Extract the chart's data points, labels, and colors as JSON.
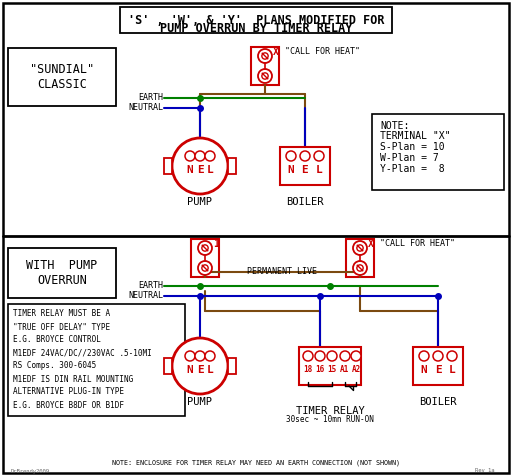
{
  "title_line1": "'S' , 'W', & 'Y'  PLANS MODIFIED FOR",
  "title_line2": "PUMP OVERRUN BY TIMER RELAY",
  "bg_color": "#ffffff",
  "red": "#cc0000",
  "green": "#008000",
  "blue": "#0000bb",
  "brown": "#7B4A10",
  "black": "#000000",
  "gray": "#666666",
  "note_lines": [
    "TIMER RELAY MUST BE A",
    "\"TRUE OFF DELAY\" TYPE",
    "E.G. BROYCE CONTROL",
    "M1EDF 24VAC/DC//230VAC .5-10MI",
    "RS Comps. 300-6045",
    "M1EDF IS DIN RAIL MOUNTING",
    "ALTERNATIVE PLUG-IN TYPE",
    "E.G. BROYCE B8DF OR B1DF"
  ]
}
